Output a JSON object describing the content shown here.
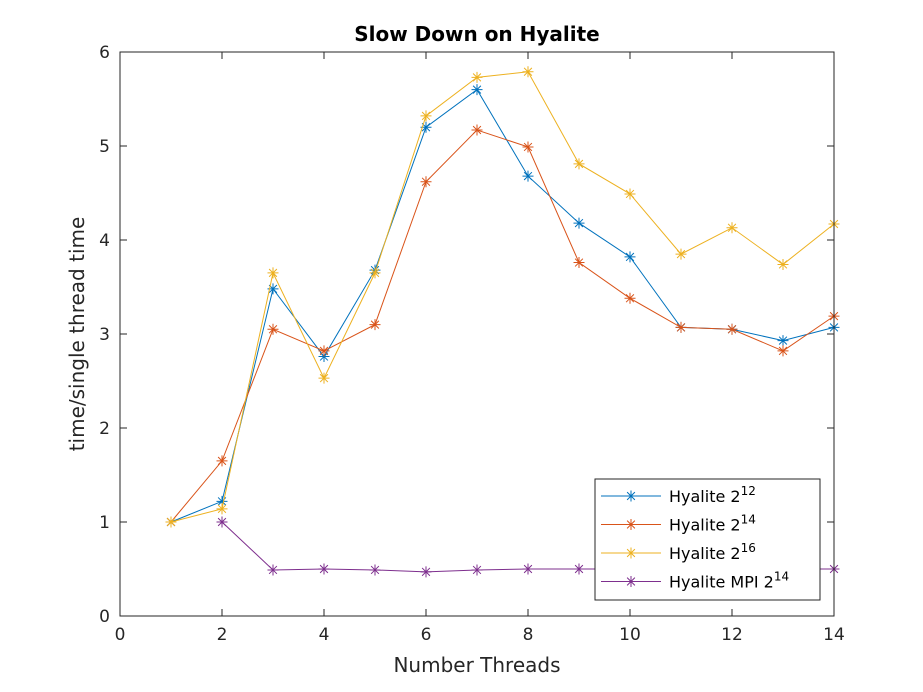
{
  "chart_data": {
    "type": "line",
    "title": "Slow Down on Hyalite",
    "xlabel": "Number Threads",
    "ylabel": "time/single thread time",
    "xlim": [
      0,
      14
    ],
    "ylim": [
      0,
      6
    ],
    "xticks": [
      "0",
      "2",
      "4",
      "6",
      "8",
      "10",
      "12",
      "14"
    ],
    "yticks": [
      "0",
      "1",
      "2",
      "3",
      "4",
      "5",
      "6"
    ],
    "grid": false,
    "legend_position": "bottom-right",
    "marker": "asterisk",
    "series": [
      {
        "name_base": "Hyalite 2",
        "name_exp": "12",
        "color": "#0072BD",
        "x": [
          1,
          2,
          3,
          4,
          5,
          6,
          7,
          8,
          9,
          10,
          11,
          12,
          13,
          14
        ],
        "y": [
          1.0,
          1.22,
          3.48,
          2.76,
          3.68,
          5.2,
          5.6,
          4.68,
          4.18,
          3.82,
          3.07,
          3.05,
          2.93,
          3.07
        ]
      },
      {
        "name_base": "Hyalite 2",
        "name_exp": "14",
        "color": "#D95319",
        "x": [
          1,
          2,
          3,
          4,
          5,
          6,
          7,
          8,
          9,
          10,
          11,
          12,
          13,
          14
        ],
        "y": [
          1.0,
          1.65,
          3.05,
          2.82,
          3.1,
          4.62,
          5.17,
          4.99,
          3.76,
          3.38,
          3.07,
          3.05,
          2.82,
          3.19
        ]
      },
      {
        "name_base": "Hyalite 2",
        "name_exp": "16",
        "color": "#EDB120",
        "x": [
          1,
          2,
          3,
          4,
          5,
          6,
          7,
          8,
          9,
          10,
          11,
          12,
          13,
          14
        ],
        "y": [
          1.0,
          1.14,
          3.65,
          2.53,
          3.65,
          5.32,
          5.73,
          5.79,
          4.81,
          4.49,
          3.85,
          4.13,
          3.74,
          4.17
        ]
      },
      {
        "name_base": "Hyalite MPI 2",
        "name_exp": "14",
        "color": "#7E2F8E",
        "x": [
          2,
          3,
          4,
          5,
          6,
          7,
          8,
          9,
          10,
          11,
          12,
          13,
          14
        ],
        "y": [
          1.0,
          0.49,
          0.5,
          0.49,
          0.47,
          0.49,
          0.5,
          0.5,
          0.5,
          0.5,
          0.5,
          0.5,
          0.5
        ]
      }
    ]
  }
}
